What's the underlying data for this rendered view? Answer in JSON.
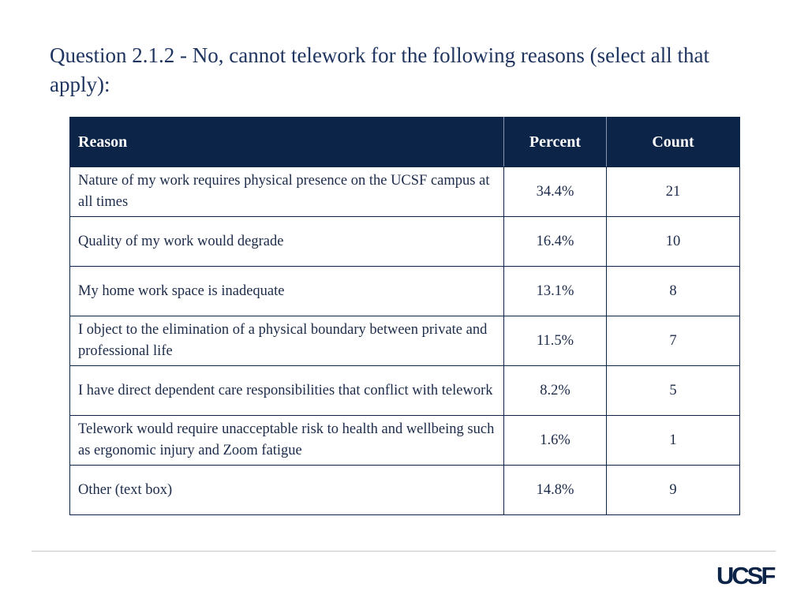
{
  "header": {
    "title": "Question 2.1.2 - No, cannot telework for the following reasons (select all that apply):"
  },
  "table": {
    "columns": [
      "Reason",
      "Percent",
      "Count"
    ],
    "rows": [
      [
        "Nature of my work requires physical presence on the UCSF campus at all times",
        "34.4%",
        21
      ],
      [
        "Quality of my work would degrade",
        "16.4%",
        10
      ],
      [
        "My home work space is inadequate",
        "13.1%",
        8
      ],
      [
        "I object to the elimination of a physical boundary between private and professional life",
        "11.5%",
        7
      ],
      [
        "I have direct dependent care responsibilities that conflict with telework",
        "8.2%",
        5
      ],
      [
        "Telework would require unacceptable risk to health and wellbeing such as ergonomic injury and Zoom fatigue",
        "1.6%",
        1
      ],
      [
        "Other (text box)",
        "14.8%",
        9
      ]
    ]
  },
  "footer": {
    "logo": "UCSF"
  }
}
